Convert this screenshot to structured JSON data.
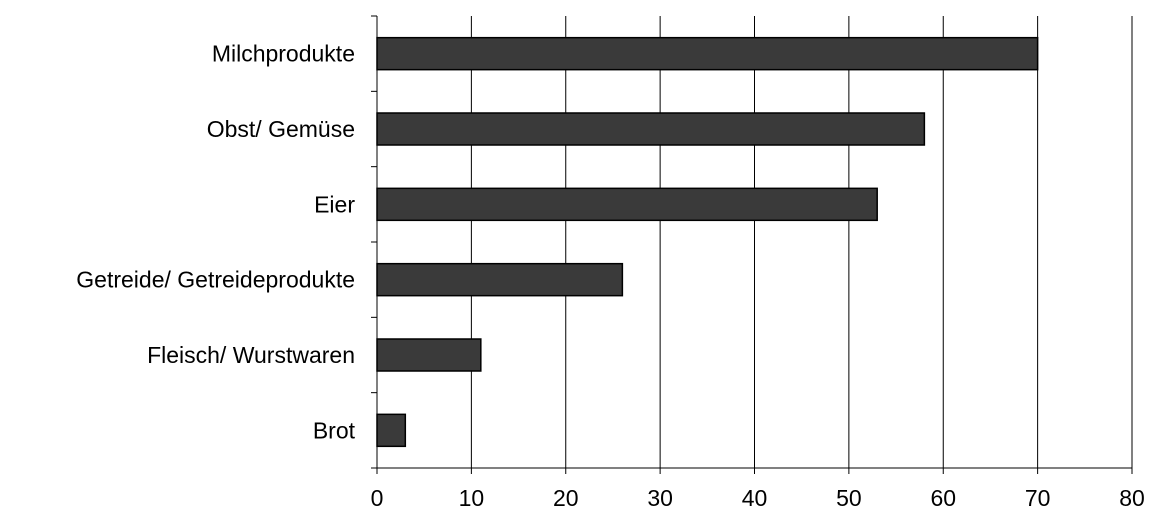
{
  "chart_data": {
    "type": "bar",
    "orientation": "horizontal",
    "categories": [
      "Milchprodukte",
      "Obst/ Gemüse",
      "Eier",
      "Getreide/ Getreideprodukte",
      "Fleisch/ Wurstwaren",
      "Brot"
    ],
    "values": [
      70,
      58,
      53,
      26,
      11,
      3
    ],
    "x_ticks": [
      "0",
      "10",
      "20",
      "30",
      "40",
      "50",
      "60",
      "70",
      "80"
    ],
    "xlim": [
      0,
      80
    ],
    "grid": "vertical",
    "legend": "none",
    "title": "",
    "xlabel": "",
    "ylabel": ""
  },
  "colors": {
    "bar_fill": "#3a3a3a",
    "bar_stroke": "#000000",
    "grid": "#000000",
    "text": "#000000",
    "background": "#ffffff"
  }
}
